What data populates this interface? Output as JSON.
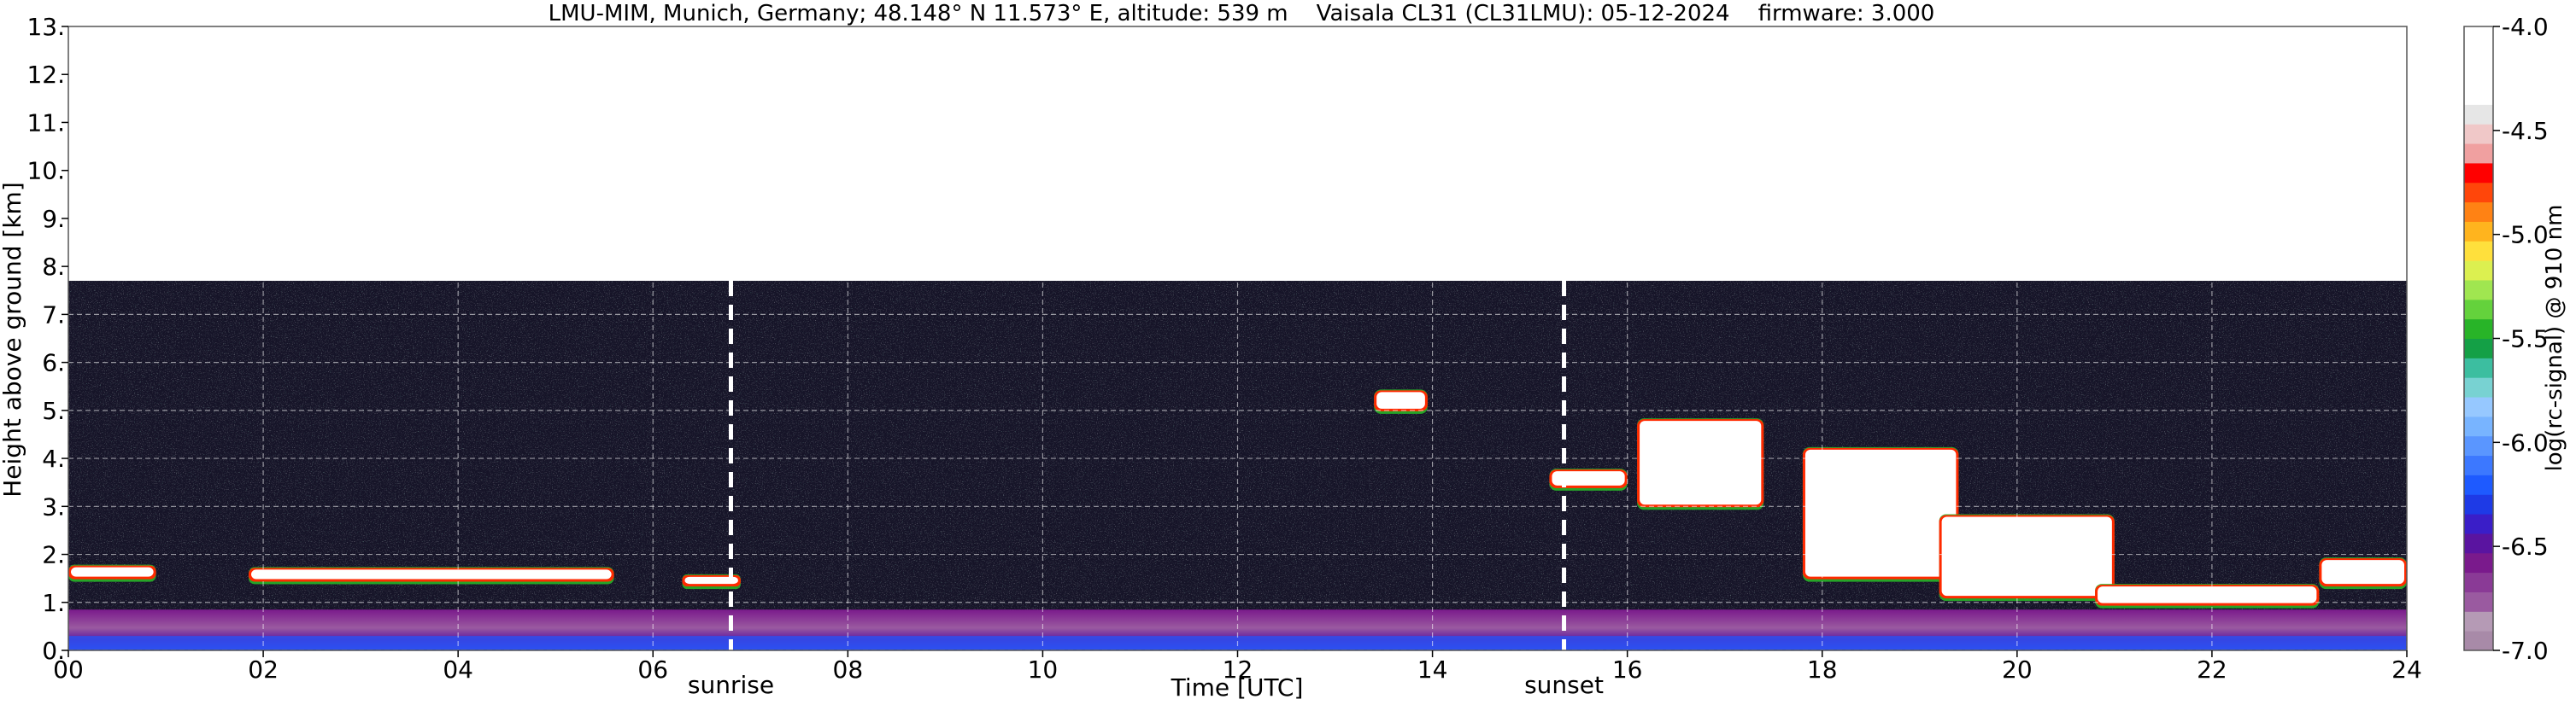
{
  "chart_data": {
    "type": "heatmap",
    "title": "LMU-MIM, Munich, Germany; 48.148° N 11.573° E, altitude: 539 m    Vaisala CL31 (CL31LMU): 05-12-2024    firmware: 3.000",
    "xlabel": "Time [UTC]",
    "ylabel": "Height above ground [km]",
    "xlim": [
      0,
      24
    ],
    "ylim": [
      0,
      13
    ],
    "x_ticks": [
      "00",
      "02",
      "04",
      "06",
      "08",
      "10",
      "12",
      "14",
      "16",
      "18",
      "20",
      "22",
      "24"
    ],
    "y_ticks": [
      "0.",
      "1.",
      "2.",
      "3.",
      "4.",
      "5.",
      "6.",
      "7.",
      "8.",
      "9.",
      "10.",
      "11.",
      "12.",
      "13."
    ],
    "grid": true,
    "signal_top_km": 7.7,
    "annotations": [
      {
        "label": "sunrise",
        "x": 6.8
      },
      {
        "label": "sunset",
        "x": 15.35
      }
    ],
    "colorbar": {
      "label": "log(rc-signal) @ 910 nm",
      "range": [
        -7.0,
        -4.0
      ],
      "ticks": [
        "-4.0",
        "-4.5",
        "-5.0",
        "-5.5",
        "-6.0",
        "-6.5",
        "-7.0"
      ],
      "colors": [
        "#a88aa8",
        "#b59ab5",
        "#9a5aa0",
        "#8a3a96",
        "#7a1a8c",
        "#5a14a0",
        "#3a1ec8",
        "#1e3ae6",
        "#1e5aff",
        "#3c78ff",
        "#5a96ff",
        "#78b4ff",
        "#96c8ff",
        "#78d2d2",
        "#3cbea0",
        "#14a046",
        "#28b428",
        "#64d23c",
        "#a0e650",
        "#dcf050",
        "#ffe03c",
        "#ffb41e",
        "#ff8214",
        "#ff460a",
        "#ff0000",
        "#f0a0a0",
        "#f0c8c8",
        "#e6e6e6",
        "#ffffff",
        "#ffffff",
        "#ffffff",
        "#ffffff"
      ]
    },
    "layers": [
      {
        "name": "near-surface aerosol",
        "x_start": 0,
        "x_end": 24,
        "y_bottom": 0.0,
        "y_top": 0.85
      },
      {
        "name": "low cloud",
        "x_start": 0,
        "x_end": 0.9,
        "y_bottom": 1.5,
        "y_top": 1.75
      },
      {
        "name": "low cloud",
        "x_start": 1.85,
        "x_end": 5.6,
        "y_bottom": 1.45,
        "y_top": 1.7
      },
      {
        "name": "low cloud",
        "x_start": 6.3,
        "x_end": 6.9,
        "y_bottom": 1.35,
        "y_top": 1.55
      },
      {
        "name": "mid cloud",
        "x_start": 13.4,
        "x_end": 13.95,
        "y_bottom": 5.0,
        "y_top": 5.4
      },
      {
        "name": "mid cloud",
        "x_start": 15.2,
        "x_end": 16.0,
        "y_bottom": 3.4,
        "y_top": 3.75
      },
      {
        "name": "cloud",
        "x_start": 16.1,
        "x_end": 17.4,
        "y_bottom": 3.0,
        "y_top": 4.8
      },
      {
        "name": "cloud",
        "x_start": 17.8,
        "x_end": 19.4,
        "y_bottom": 1.5,
        "y_top": 4.2
      },
      {
        "name": "cloud",
        "x_start": 19.2,
        "x_end": 21.0,
        "y_bottom": 1.1,
        "y_top": 2.8
      },
      {
        "name": "low cloud",
        "x_start": 20.8,
        "x_end": 23.1,
        "y_bottom": 0.95,
        "y_top": 1.35
      },
      {
        "name": "low cloud",
        "x_start": 23.1,
        "x_end": 24.0,
        "y_bottom": 1.35,
        "y_top": 1.9
      }
    ]
  }
}
